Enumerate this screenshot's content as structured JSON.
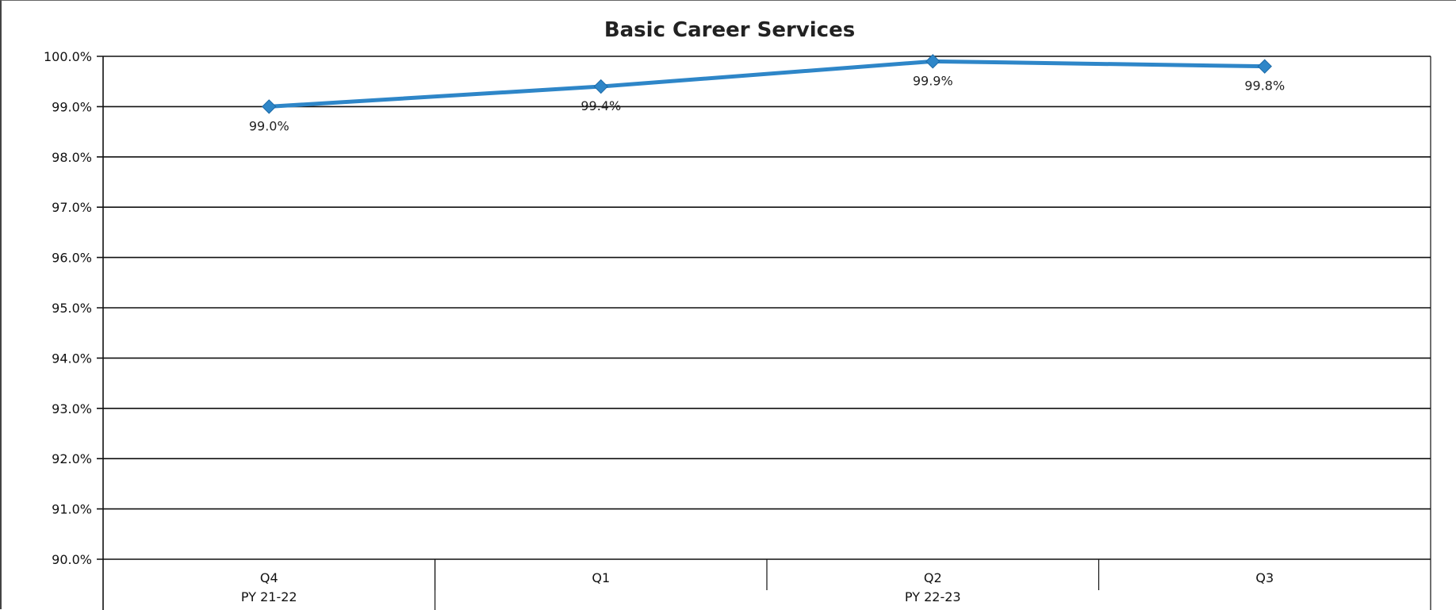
{
  "chart_data": {
    "type": "line",
    "title": "Basic Career Services",
    "xlabel": "",
    "ylabel": "",
    "ylim": [
      90.0,
      100.0
    ],
    "y_ticks": [
      "90.0%",
      "91.0%",
      "92.0%",
      "93.0%",
      "94.0%",
      "95.0%",
      "96.0%",
      "97.0%",
      "98.0%",
      "99.0%",
      "100.0%"
    ],
    "categories": [
      "Q4",
      "Q1",
      "Q2",
      "Q3"
    ],
    "groups": [
      {
        "label": "PY 21-22",
        "span": 1
      },
      {
        "label": "PY 22-23",
        "span": 3
      }
    ],
    "series": [
      {
        "values": [
          99.0,
          99.4,
          99.9,
          99.8
        ],
        "labels": [
          "99.0%",
          "99.4%",
          "99.9%",
          "99.8%"
        ]
      }
    ],
    "grid": true,
    "legend": "none",
    "colors": {
      "line": "#2e86c8",
      "marker": "#2e86c8",
      "grid": "#111111"
    }
  }
}
